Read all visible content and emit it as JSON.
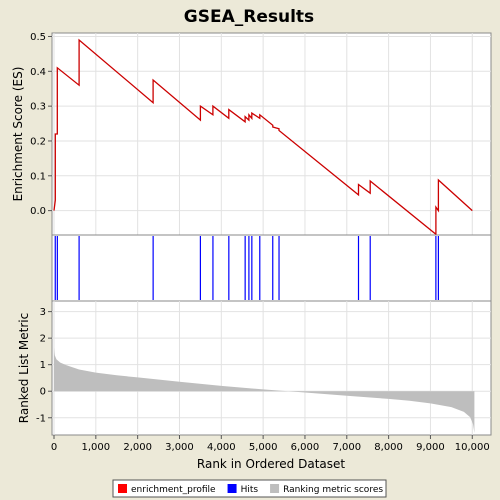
{
  "chart_data": {
    "type": "line",
    "title": "GSEA_Results",
    "xlabel": "Rank in Ordered Dataset",
    "xlim": [
      0,
      10400
    ],
    "xticks": [
      0,
      1000,
      2000,
      3000,
      4000,
      5000,
      6000,
      7000,
      8000,
      9000,
      10000
    ],
    "xtick_labels": [
      "0",
      "1,000",
      "2,000",
      "3,000",
      "4,000",
      "5,000",
      "6,000",
      "7,000",
      "8,000",
      "9,000",
      "10,000"
    ],
    "es_panel": {
      "ylabel": "Enrichment Score (ES)",
      "ylim": [
        -0.07,
        0.51
      ],
      "yticks": [
        0.0,
        0.1,
        0.2,
        0.3,
        0.4,
        0.5
      ],
      "ytick_labels": [
        "0.0",
        "0.1",
        "0.2",
        "0.3",
        "0.4",
        "0.5"
      ],
      "grid": true,
      "series_name": "enrichment_profile",
      "color": "#cc0000",
      "x": [
        0,
        30,
        30,
        80,
        80,
        600,
        600,
        2370,
        2370,
        3500,
        3500,
        3800,
        3800,
        4180,
        4180,
        4570,
        4570,
        4660,
        4660,
        4730,
        4730,
        4920,
        4920,
        5230,
        5230,
        5380,
        5380,
        7280,
        7280,
        7560,
        7560,
        9130,
        9130,
        9190,
        9190,
        10000
      ],
      "y": [
        0.0,
        0.03,
        0.22,
        0.22,
        0.41,
        0.36,
        0.49,
        0.31,
        0.375,
        0.26,
        0.3,
        0.275,
        0.3,
        0.265,
        0.29,
        0.255,
        0.27,
        0.26,
        0.275,
        0.265,
        0.28,
        0.265,
        0.275,
        0.245,
        0.24,
        0.235,
        0.23,
        0.045,
        0.075,
        0.05,
        0.085,
        -0.068,
        0.01,
        0.0,
        0.088,
        0.0
      ]
    },
    "hits_panel": {
      "series_name": "Hits",
      "color": "#0000ff",
      "hits": [
        30,
        80,
        600,
        2370,
        3500,
        3800,
        4180,
        4570,
        4660,
        4730,
        4920,
        5230,
        5380,
        7280,
        7560,
        9130,
        9190
      ]
    },
    "metric_panel": {
      "ylabel": "Ranked List Metric",
      "ylim": [
        -1.65,
        3.4
      ],
      "yticks": [
        -1,
        0,
        1,
        2,
        3
      ],
      "ytick_labels": [
        "-1",
        "0",
        "1",
        "2",
        "3"
      ],
      "series_name": "Ranking metric scores",
      "color": "#bebebe",
      "x": [
        0,
        20,
        60,
        150,
        300,
        600,
        1000,
        1500,
        2000,
        3000,
        4000,
        5000,
        5600,
        6000,
        7000,
        8000,
        8500,
        9000,
        9500,
        9800,
        9950,
        10020,
        10050
      ],
      "y": [
        1.65,
        1.35,
        1.2,
        1.08,
        0.98,
        0.82,
        0.7,
        0.6,
        0.52,
        0.36,
        0.2,
        0.07,
        0.0,
        -0.05,
        -0.17,
        -0.29,
        -0.36,
        -0.46,
        -0.6,
        -0.78,
        -0.98,
        -1.25,
        -1.58
      ]
    },
    "legend": {
      "placement": "bottom-center",
      "items": [
        {
          "label": "enrichment_profile",
          "color": "#ff0000"
        },
        {
          "label": "Hits",
          "color": "#0000ff"
        },
        {
          "label": "Ranking metric scores",
          "color": "#bebebe"
        }
      ]
    }
  }
}
